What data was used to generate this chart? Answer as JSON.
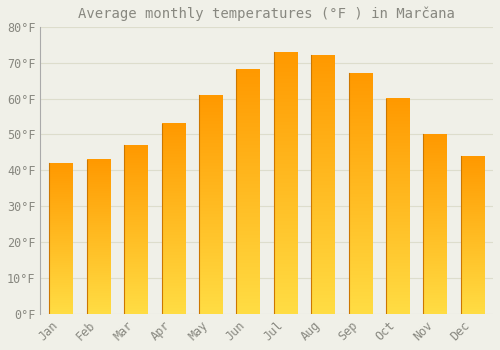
{
  "title": "Average monthly temperatures (°F ) in Marčana",
  "months": [
    "Jan",
    "Feb",
    "Mar",
    "Apr",
    "May",
    "Jun",
    "Jul",
    "Aug",
    "Sep",
    "Oct",
    "Nov",
    "Dec"
  ],
  "values": [
    42,
    43,
    47,
    53,
    61,
    68,
    73,
    72,
    67,
    60,
    50,
    44
  ],
  "bar_color": "#FFA820",
  "background_color": "#F0F0E8",
  "grid_color": "#DDDDCC",
  "text_color": "#888880",
  "ylim": [
    0,
    80
  ],
  "yticks": [
    0,
    10,
    20,
    30,
    40,
    50,
    60,
    70,
    80
  ],
  "ytick_labels": [
    "0°F",
    "10°F",
    "20°F",
    "30°F",
    "40°F",
    "50°F",
    "60°F",
    "70°F",
    "80°F"
  ],
  "title_fontsize": 10,
  "tick_fontsize": 8.5,
  "gradient_top": "#FF9900",
  "gradient_bottom": "#FFDD44"
}
